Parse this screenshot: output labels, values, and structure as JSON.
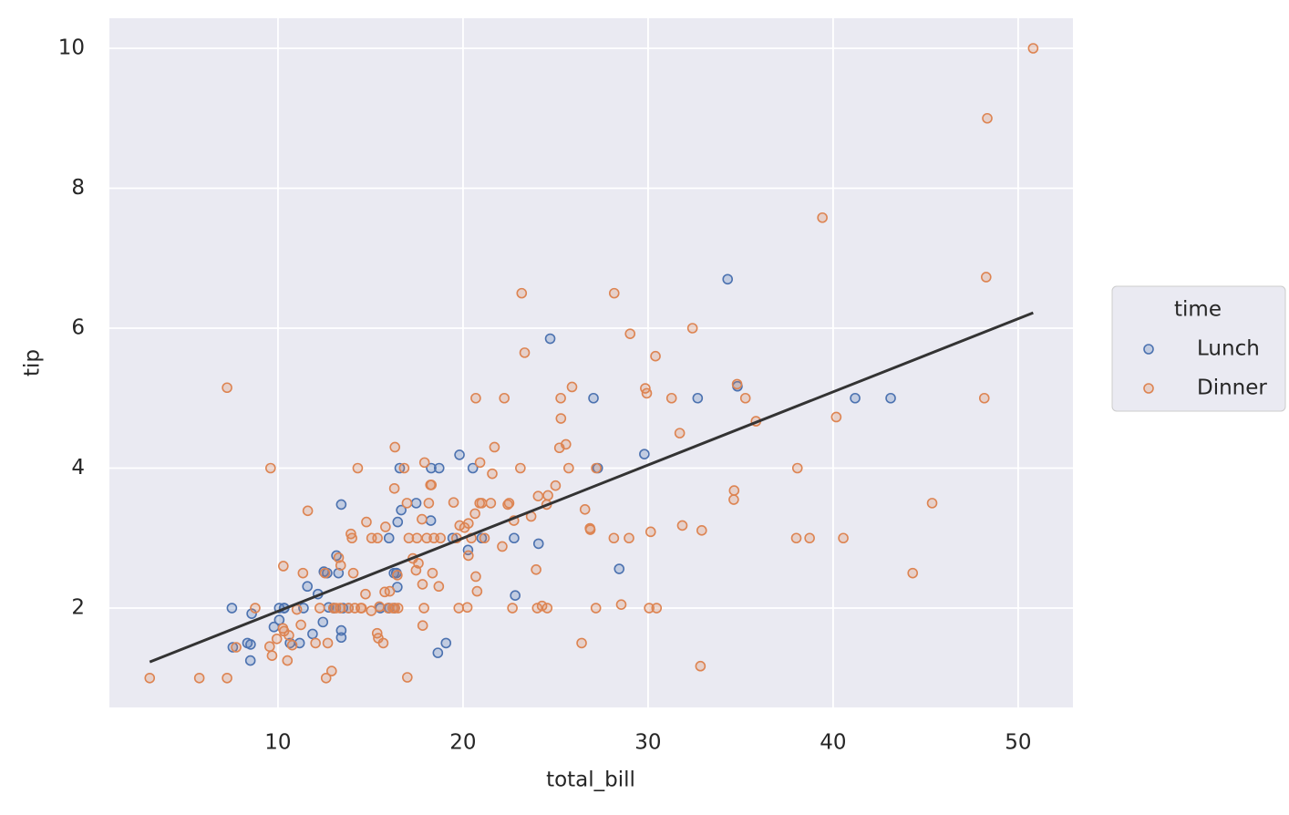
{
  "chart_data": {
    "type": "scatter",
    "x_label": "total_bill",
    "y_label": "tip",
    "xlim": [
      0.89,
      52.96
    ],
    "ylim": [
      0.58,
      10.43
    ],
    "xticks": [
      10,
      20,
      30,
      40,
      50
    ],
    "yticks": [
      2,
      4,
      6,
      8,
      10
    ],
    "grid": true,
    "legend_title": "time",
    "legend_position": "right",
    "fit": {
      "x": [
        3.07,
        50.81
      ],
      "y": [
        1.23,
        6.22
      ],
      "color": "#333333"
    },
    "series": [
      {
        "name": "Lunch",
        "color": "#4c72b0",
        "x": [
          7.51,
          7.56,
          8.35,
          8.51,
          8.52,
          8.58,
          9.78,
          10.07,
          10.07,
          10.33,
          10.34,
          10.65,
          11.17,
          11.38,
          11.59,
          11.87,
          12.16,
          12.43,
          12.48,
          12.66,
          12.74,
          13.0,
          13.03,
          13.16,
          13.27,
          13.42,
          13.42,
          13.42,
          13.51,
          13.81,
          15.53,
          15.98,
          16.0,
          16.27,
          16.4,
          16.47,
          16.58,
          16.66,
          17.47,
          18.26,
          18.28,
          18.64,
          18.71,
          19.08,
          19.44,
          19.81,
          20.27,
          20.53,
          21.01,
          22.76,
          22.82,
          24.08,
          24.71,
          27.05,
          27.28,
          28.44,
          29.8,
          32.68,
          34.3,
          34.83,
          41.19,
          43.11,
          16.31,
          16.0,
          16.4,
          16.45
        ],
        "values": [
          2.0,
          1.44,
          1.5,
          1.25,
          1.48,
          1.92,
          1.73,
          1.83,
          2.0,
          2.0,
          2.0,
          1.5,
          1.5,
          2.0,
          2.31,
          1.63,
          2.2,
          1.8,
          2.52,
          2.5,
          2.01,
          2.0,
          2.0,
          2.75,
          2.5,
          3.48,
          1.68,
          1.58,
          2.0,
          2.0,
          2.0,
          2.0,
          2.0,
          2.5,
          2.5,
          3.23,
          4.0,
          3.4,
          3.5,
          3.25,
          4.0,
          1.36,
          4.0,
          1.5,
          3.0,
          4.19,
          2.83,
          4.0,
          3.0,
          3.0,
          2.18,
          2.92,
          5.85,
          5.0,
          4.0,
          2.56,
          4.2,
          5.0,
          6.7,
          5.17,
          5.0,
          5.0,
          2.0,
          3.0,
          2.5,
          2.3
        ]
      },
      {
        "name": "Dinner",
        "color": "#dd8452",
        "x": [
          3.07,
          5.75,
          7.25,
          7.25,
          7.74,
          8.77,
          9.55,
          9.6,
          9.68,
          9.94,
          10.27,
          10.29,
          10.33,
          10.51,
          10.59,
          10.77,
          11.02,
          11.24,
          11.35,
          11.61,
          12.03,
          12.26,
          12.54,
          12.6,
          12.69,
          12.9,
          13.0,
          13.13,
          13.28,
          13.37,
          13.39,
          13.81,
          13.94,
          14.0,
          14.07,
          14.15,
          14.31,
          14.48,
          14.52,
          14.73,
          14.78,
          15.04,
          15.06,
          15.36,
          15.38,
          15.42,
          15.48,
          15.69,
          15.77,
          15.81,
          15.95,
          16.04,
          16.21,
          16.29,
          16.31,
          16.32,
          16.45,
          16.49,
          16.82,
          16.97,
          16.99,
          17.07,
          17.29,
          17.46,
          17.51,
          17.59,
          17.78,
          17.81,
          17.82,
          17.89,
          17.92,
          18.04,
          18.15,
          18.24,
          18.29,
          18.35,
          18.43,
          18.69,
          18.78,
          19.49,
          19.65,
          19.77,
          19.82,
          20.08,
          20.23,
          20.29,
          20.29,
          20.45,
          20.65,
          20.69,
          20.69,
          20.76,
          20.9,
          20.92,
          21.01,
          21.16,
          21.5,
          21.58,
          21.7,
          22.12,
          22.23,
          22.42,
          22.49,
          22.67,
          22.75,
          23.1,
          23.17,
          23.33,
          23.68,
          23.95,
          24.01,
          24.06,
          24.27,
          24.52,
          24.55,
          24.59,
          25.0,
          25.21,
          25.28,
          25.29,
          25.56,
          25.71,
          25.89,
          26.41,
          26.59,
          26.86,
          26.88,
          27.2,
          27.18,
          28.15,
          28.17,
          28.55,
          28.97,
          29.03,
          29.85,
          29.93,
          30.06,
          30.14,
          30.4,
          30.46,
          31.27,
          31.71,
          31.85,
          32.4,
          32.83,
          32.9,
          34.63,
          34.65,
          34.81,
          35.26,
          35.83,
          38.01,
          38.07,
          38.73,
          39.42,
          40.17,
          40.55,
          44.3,
          45.35,
          48.17,
          48.27,
          48.33,
          50.81
        ],
        "values": [
          1.0,
          1.0,
          1.0,
          5.15,
          1.44,
          2.0,
          1.45,
          4.0,
          1.32,
          1.56,
          1.71,
          2.6,
          1.67,
          1.25,
          1.61,
          1.47,
          1.98,
          1.76,
          2.5,
          3.39,
          1.5,
          2.0,
          2.5,
          1.0,
          1.5,
          1.1,
          2.0,
          2.0,
          2.72,
          2.0,
          2.61,
          2.0,
          3.06,
          3.0,
          2.5,
          2.0,
          4.0,
          2.0,
          2.0,
          2.2,
          3.23,
          1.96,
          3.0,
          1.64,
          3.0,
          1.57,
          2.02,
          1.5,
          2.23,
          3.16,
          2.0,
          2.24,
          2.0,
          3.71,
          2.0,
          4.3,
          2.47,
          2.0,
          4.0,
          3.5,
          1.01,
          3.0,
          2.71,
          2.54,
          3.0,
          2.64,
          3.27,
          2.34,
          1.75,
          2.0,
          4.08,
          3.0,
          3.5,
          3.76,
          3.76,
          2.5,
          3.0,
          2.31,
          3.0,
          3.51,
          3.0,
          2.0,
          3.18,
          3.15,
          2.01,
          2.75,
          3.21,
          3.0,
          3.35,
          2.45,
          5.0,
          2.24,
          3.5,
          4.08,
          3.5,
          3.0,
          3.5,
          3.92,
          4.3,
          2.88,
          5.0,
          3.48,
          3.5,
          2.0,
          3.25,
          4.0,
          6.5,
          5.65,
          3.31,
          2.55,
          2.0,
          3.6,
          2.03,
          3.48,
          2.0,
          3.61,
          3.75,
          4.29,
          5.0,
          4.71,
          4.34,
          4.0,
          5.16,
          1.5,
          3.41,
          3.14,
          3.12,
          4.0,
          2.0,
          3.0,
          6.5,
          2.05,
          3.0,
          5.92,
          5.14,
          5.07,
          2.0,
          3.09,
          5.6,
          2.0,
          5.0,
          4.5,
          3.18,
          6.0,
          1.17,
          3.11,
          3.55,
          3.68,
          5.2,
          5.0,
          4.67,
          3.0,
          4.0,
          3.0,
          7.58,
          4.73,
          3.0,
          2.5,
          3.5,
          5.0,
          6.73,
          9.0,
          10.0
        ]
      }
    ]
  }
}
